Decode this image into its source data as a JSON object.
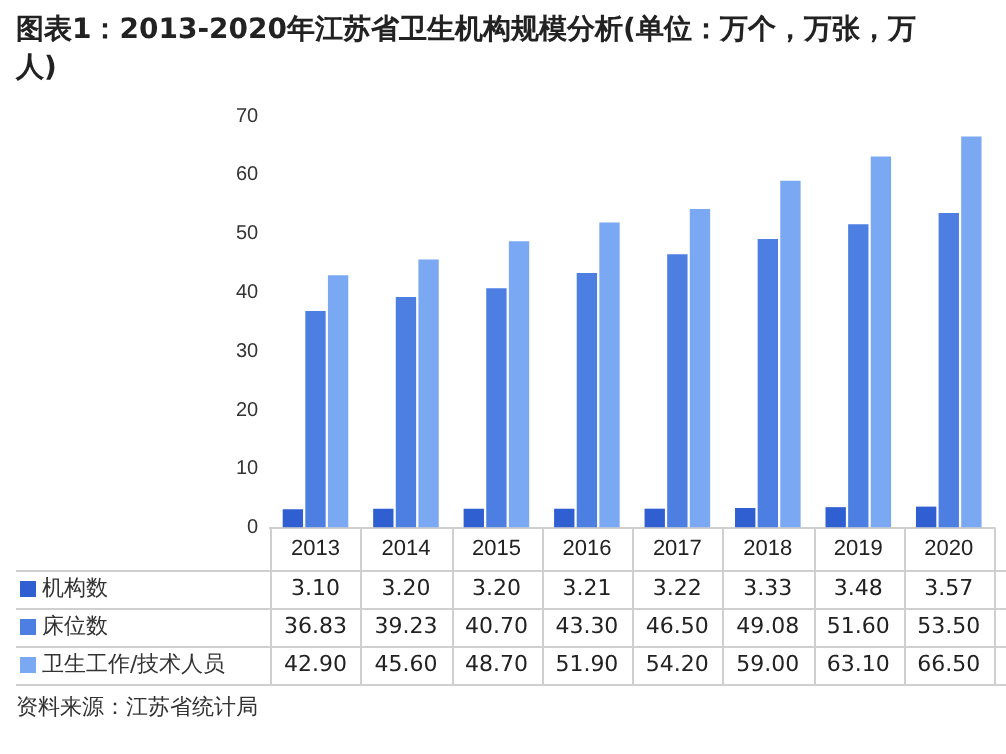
{
  "chart_data": {
    "type": "bar",
    "title": "图表1：2013-2020年江苏省卫生机构规模分析(单位：万个，万张，万人)",
    "categories": [
      "2013",
      "2014",
      "2015",
      "2016",
      "2017",
      "2018",
      "2019",
      "2020"
    ],
    "series": [
      {
        "name": "机构数",
        "color": "#2f5fd0",
        "values": [
          3.1,
          3.2,
          3.2,
          3.21,
          3.22,
          3.33,
          3.48,
          3.57
        ],
        "value_labels": [
          "3.10",
          "3.20",
          "3.20",
          "3.21",
          "3.22",
          "3.33",
          "3.48",
          "3.57"
        ]
      },
      {
        "name": "床位数",
        "color": "#4d7fe3",
        "values": [
          36.83,
          39.23,
          40.7,
          43.3,
          46.5,
          49.08,
          51.6,
          53.5
        ],
        "value_labels": [
          "36.83",
          "39.23",
          "40.70",
          "43.30",
          "46.50",
          "49.08",
          "51.60",
          "53.50"
        ]
      },
      {
        "name": "卫生工作/技术人员",
        "color": "#7ba8f2",
        "values": [
          42.9,
          45.6,
          48.7,
          51.9,
          54.2,
          59.0,
          63.1,
          66.5
        ],
        "value_labels": [
          "42.90",
          "45.60",
          "48.70",
          "51.90",
          "54.20",
          "59.00",
          "63.10",
          "66.50"
        ]
      }
    ],
    "ylim": [
      0,
      70
    ],
    "yticks": [
      0,
      10,
      20,
      30,
      40,
      50,
      60,
      70
    ],
    "grid": false,
    "legend": "bottom",
    "annotations": [
      "资料来源：江苏省统计局"
    ]
  }
}
